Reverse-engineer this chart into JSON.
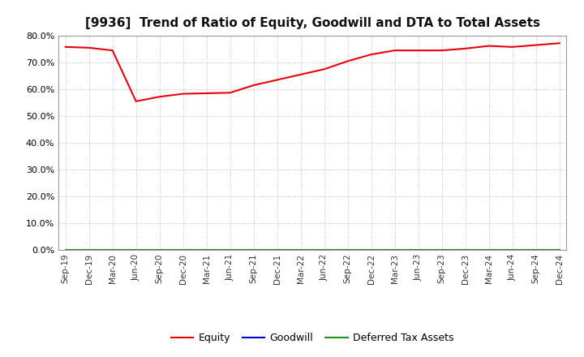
{
  "title": "[9936]  Trend of Ratio of Equity, Goodwill and DTA to Total Assets",
  "x_labels": [
    "Sep-19",
    "Dec-19",
    "Mar-20",
    "Jun-20",
    "Sep-20",
    "Dec-20",
    "Mar-21",
    "Jun-21",
    "Sep-21",
    "Dec-21",
    "Mar-22",
    "Jun-22",
    "Sep-22",
    "Dec-22",
    "Mar-23",
    "Jun-23",
    "Sep-23",
    "Dec-23",
    "Mar-24",
    "Jun-24",
    "Sep-24",
    "Dec-24"
  ],
  "equity": [
    75.8,
    75.5,
    74.5,
    55.5,
    57.2,
    58.3,
    58.5,
    58.7,
    61.5,
    63.5,
    65.5,
    67.5,
    70.5,
    73.0,
    74.5,
    74.5,
    74.5,
    75.2,
    76.2,
    75.8,
    76.5,
    77.2
  ],
  "goodwill": [
    0.0,
    0.0,
    0.0,
    0.0,
    0.0,
    0.0,
    0.0,
    0.0,
    0.0,
    0.0,
    0.0,
    0.0,
    0.0,
    0.0,
    0.0,
    0.0,
    0.0,
    0.0,
    0.0,
    0.0,
    0.0,
    0.0
  ],
  "dta": [
    0.0,
    0.0,
    0.0,
    0.0,
    0.0,
    0.0,
    0.0,
    0.0,
    0.0,
    0.0,
    0.0,
    0.0,
    0.0,
    0.0,
    0.0,
    0.0,
    0.0,
    0.0,
    0.0,
    0.0,
    0.0,
    0.0
  ],
  "equity_color": "#e8000d",
  "goodwill_color": "#0000cd",
  "dta_color": "#228b22",
  "ylim": [
    0.0,
    80.0
  ],
  "yticks": [
    0.0,
    10.0,
    20.0,
    30.0,
    40.0,
    50.0,
    60.0,
    70.0,
    80.0
  ],
  "background_color": "#ffffff",
  "grid_color": "#b0b0b0",
  "title_fontsize": 11,
  "legend_labels": [
    "Equity",
    "Goodwill",
    "Deferred Tax Assets"
  ]
}
